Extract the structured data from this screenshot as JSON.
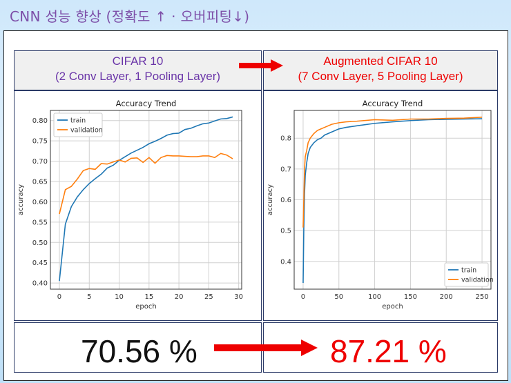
{
  "slide": {
    "title": "CNN 성능 향상 (정확도 ↑ · 오버피팅↓)"
  },
  "header": {
    "left": {
      "line1": "CIFAR 10",
      "line2": "(2 Conv Layer, 1 Pooling Layer)"
    },
    "right": {
      "line1": "Augmented CIFAR 10",
      "line2": "(7 Conv Layer, 5 Pooling Layer)"
    }
  },
  "results": {
    "left": "70.56 %",
    "right": "87.21 %"
  },
  "colors": {
    "title": "#7d4fa8",
    "left_header": "#6a35a8",
    "right_header": "#ee0000",
    "arrow": "#ee0000",
    "train": "#1f77b4",
    "validation": "#ff7f0e"
  },
  "chart_data": [
    {
      "type": "line",
      "title": "Accuracy Trend",
      "xlabel": "epoch",
      "ylabel": "accuracy",
      "xlim": [
        -1.5,
        30.5
      ],
      "ylim": [
        0.385,
        0.825
      ],
      "xticks": [
        0,
        5,
        10,
        15,
        20,
        25,
        30
      ],
      "yticks": [
        "0.40",
        "0.45",
        "0.50",
        "0.55",
        "0.60",
        "0.65",
        "0.70",
        "0.75",
        "0.80"
      ],
      "grid": true,
      "legend": "top-left",
      "x": [
        0,
        1,
        2,
        3,
        4,
        5,
        6,
        7,
        8,
        9,
        10,
        11,
        12,
        13,
        14,
        15,
        16,
        17,
        18,
        19,
        20,
        21,
        22,
        23,
        24,
        25,
        26,
        27,
        28,
        29
      ],
      "series": [
        {
          "name": "train",
          "values": [
            0.405,
            0.545,
            0.588,
            0.612,
            0.63,
            0.645,
            0.657,
            0.668,
            0.683,
            0.69,
            0.702,
            0.711,
            0.72,
            0.727,
            0.734,
            0.743,
            0.749,
            0.756,
            0.764,
            0.768,
            0.769,
            0.778,
            0.781,
            0.787,
            0.792,
            0.794,
            0.799,
            0.804,
            0.805,
            0.809
          ]
        },
        {
          "name": "validation",
          "values": [
            0.57,
            0.63,
            0.638,
            0.656,
            0.677,
            0.682,
            0.68,
            0.694,
            0.693,
            0.698,
            0.703,
            0.698,
            0.707,
            0.708,
            0.697,
            0.709,
            0.695,
            0.709,
            0.714,
            0.713,
            0.713,
            0.712,
            0.711,
            0.711,
            0.713,
            0.713,
            0.709,
            0.719,
            0.715,
            0.706
          ]
        }
      ]
    },
    {
      "type": "line",
      "title": "Accuracy Trend",
      "xlabel": "epoch",
      "ylabel": "accuracy",
      "xlim": [
        -12.5,
        262.5
      ],
      "ylim": [
        0.31,
        0.89
      ],
      "xticks": [
        0,
        50,
        100,
        150,
        200,
        250
      ],
      "yticks": [
        "0.4",
        "0.5",
        "0.6",
        "0.7",
        "0.8"
      ],
      "grid": true,
      "legend": "bottom-right",
      "x": [
        0,
        1,
        2,
        3,
        5,
        7,
        10,
        15,
        20,
        25,
        30,
        40,
        50,
        60,
        75,
        100,
        125,
        150,
        175,
        200,
        225,
        250
      ],
      "series": [
        {
          "name": "train",
          "values": [
            0.33,
            0.51,
            0.62,
            0.68,
            0.72,
            0.75,
            0.77,
            0.785,
            0.795,
            0.8,
            0.81,
            0.82,
            0.83,
            0.835,
            0.84,
            0.848,
            0.853,
            0.857,
            0.86,
            0.861,
            0.862,
            0.863
          ]
        },
        {
          "name": "validation",
          "values": [
            0.51,
            0.6,
            0.7,
            0.74,
            0.76,
            0.785,
            0.8,
            0.815,
            0.825,
            0.83,
            0.835,
            0.845,
            0.85,
            0.853,
            0.855,
            0.86,
            0.858,
            0.862,
            0.862,
            0.864,
            0.865,
            0.868
          ]
        }
      ]
    }
  ]
}
